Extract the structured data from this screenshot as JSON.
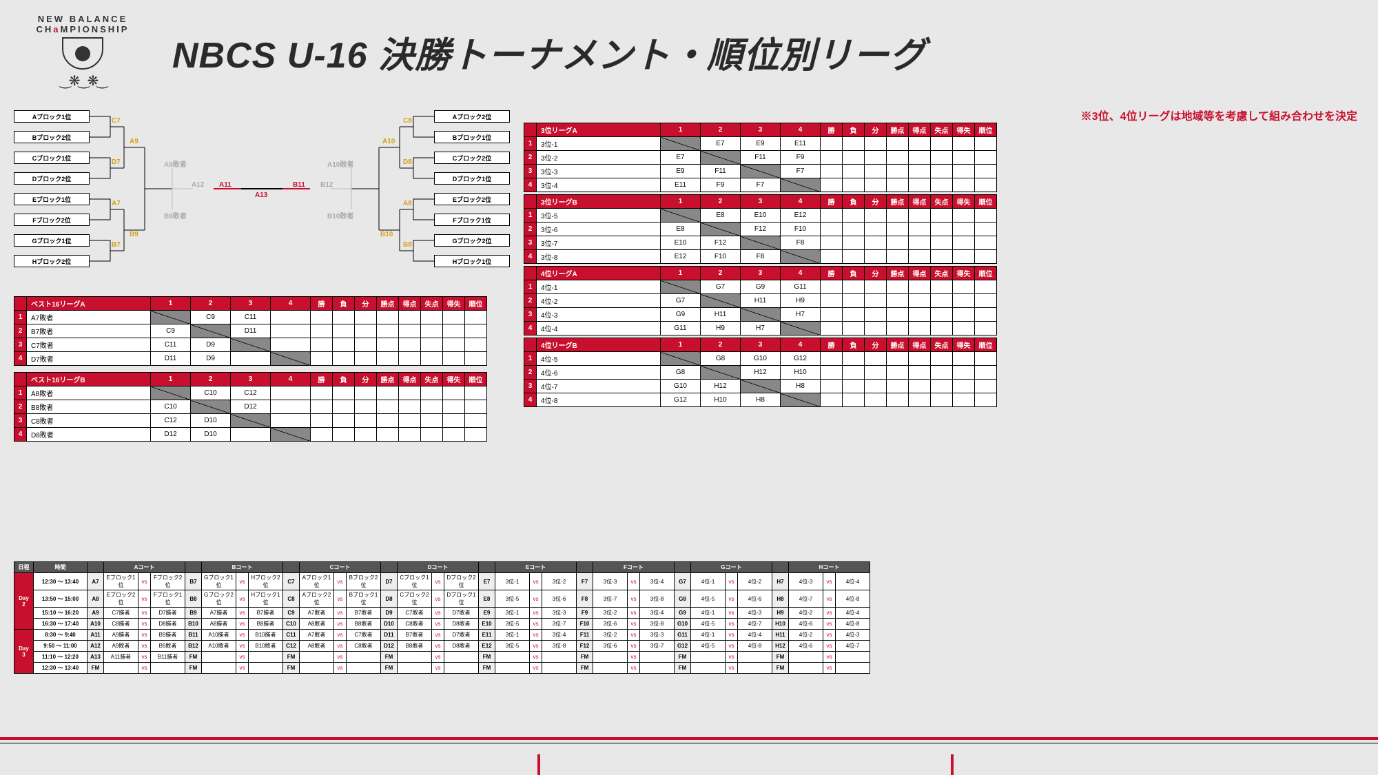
{
  "title": "NBCS U-16 決勝トーナメント・順位別リーグ",
  "logo": {
    "line1": "NEW BALANCE",
    "line2_pre": "CH",
    "line2_a": "a",
    "line2_post": "MPIONSHIP"
  },
  "note": "※3位、4位リーグは地域等を考慮して組み合わせを決定",
  "colors": {
    "accent": "#c8102e",
    "yellow": "#d4a017",
    "gray": "#aaaaaa"
  },
  "bracket": {
    "left_teams": [
      "Aブロック1位",
      "Bブロック2位",
      "Cブロック1位",
      "Dブロック2位",
      "Eブロック1位",
      "Fブロック2位",
      "Gブロック1位",
      "Hブロック2位"
    ],
    "right_teams": [
      "Aブロック2位",
      "Bブロック1位",
      "Cブロック2位",
      "Dブロック1位",
      "Eブロック2位",
      "Fブロック1位",
      "Gブロック2位",
      "Hブロック1位"
    ],
    "labels_yellow_left": [
      "C7",
      "D7",
      "A7",
      "B7",
      "A9",
      "B9"
    ],
    "labels_yellow_right": [
      "C8",
      "D8",
      "A8",
      "B8",
      "A10",
      "B10"
    ],
    "labels_red": [
      "A11",
      "A13",
      "B11"
    ],
    "labels_gray": [
      "A9敗者",
      "B9敗者",
      "A12",
      "A10敗者",
      "B10敗者",
      "B12"
    ]
  },
  "best16A": {
    "title": "ベスト16リーグA",
    "cols": [
      "1",
      "2",
      "3",
      "4",
      "勝",
      "負",
      "分",
      "勝点",
      "得点",
      "失点",
      "得失",
      "順位"
    ],
    "rows": [
      {
        "n": "1",
        "team": "A7敗者",
        "cells": [
          "X",
          "",
          "C9",
          "C11",
          "",
          "",
          "",
          "",
          "",
          "",
          "",
          ""
        ]
      },
      {
        "n": "2",
        "team": "B7敗者",
        "cells": [
          "",
          "X",
          "C9",
          "",
          "D11",
          "",
          "",
          "",
          "",
          "",
          "",
          ""
        ]
      },
      {
        "n": "3",
        "team": "C7敗者",
        "cells": [
          "",
          "C11",
          "",
          "X",
          "D9",
          "",
          "",
          "",
          "",
          "",
          "",
          ""
        ]
      },
      {
        "n": "4",
        "team": "D7敗者",
        "cells": [
          "",
          "",
          "D11",
          "D9",
          "X",
          "",
          "",
          "",
          "",
          "",
          "",
          ""
        ]
      }
    ]
  },
  "best16B": {
    "title": "ベスト16リーグB",
    "cols": [
      "1",
      "2",
      "3",
      "4",
      "勝",
      "負",
      "分",
      "勝点",
      "得点",
      "失点",
      "得失",
      "順位"
    ],
    "rows": [
      {
        "n": "1",
        "team": "A8敗者",
        "cells": [
          "X",
          "",
          "C10",
          "C12",
          "",
          "",
          "",
          "",
          "",
          "",
          "",
          ""
        ]
      },
      {
        "n": "2",
        "team": "B8敗者",
        "cells": [
          "",
          "X",
          "C10",
          "",
          "D12",
          "",
          "",
          "",
          "",
          "",
          "",
          ""
        ]
      },
      {
        "n": "3",
        "team": "C8敗者",
        "cells": [
          "",
          "C12",
          "",
          "X",
          "D10",
          "",
          "",
          "",
          "",
          "",
          "",
          ""
        ]
      },
      {
        "n": "4",
        "team": "D8敗者",
        "cells": [
          "",
          "",
          "D12",
          "D10",
          "X",
          "",
          "",
          "",
          "",
          "",
          "",
          ""
        ]
      }
    ]
  },
  "league3A": {
    "title": "3位リーグA",
    "cols": [
      "1",
      "2",
      "3",
      "4",
      "勝",
      "負",
      "分",
      "勝点",
      "得点",
      "失点",
      "得失",
      "順位"
    ],
    "rows": [
      {
        "n": "1",
        "team": "3位-1",
        "cells": [
          "X",
          "",
          "E7",
          "E9",
          "E11",
          "",
          "",
          "",
          "",
          "",
          "",
          ""
        ]
      },
      {
        "n": "2",
        "team": "3位-2",
        "cells": [
          "",
          "X",
          "E7",
          "F11",
          "F9",
          "",
          "",
          "",
          "",
          "",
          "",
          ""
        ]
      },
      {
        "n": "3",
        "team": "3位-3",
        "cells": [
          "",
          "E9",
          "F11",
          "X",
          "F7",
          "",
          "",
          "",
          "",
          "",
          "",
          ""
        ]
      },
      {
        "n": "4",
        "team": "3位-4",
        "cells": [
          "",
          "E11",
          "F9",
          "F7",
          "X",
          "",
          "",
          "",
          "",
          "",
          "",
          ""
        ]
      }
    ]
  },
  "league3B": {
    "title": "3位リーグB",
    "cols": [
      "1",
      "2",
      "3",
      "4",
      "勝",
      "負",
      "分",
      "勝点",
      "得点",
      "失点",
      "得失",
      "順位"
    ],
    "rows": [
      {
        "n": "1",
        "team": "3位-5",
        "cells": [
          "X",
          "",
          "E8",
          "E10",
          "E12",
          "",
          "",
          "",
          "",
          "",
          "",
          ""
        ]
      },
      {
        "n": "2",
        "team": "3位-6",
        "cells": [
          "",
          "X",
          "E8",
          "F12",
          "F10",
          "",
          "",
          "",
          "",
          "",
          "",
          ""
        ]
      },
      {
        "n": "3",
        "team": "3位-7",
        "cells": [
          "",
          "E10",
          "F12",
          "X",
          "F8",
          "",
          "",
          "",
          "",
          "",
          "",
          ""
        ]
      },
      {
        "n": "4",
        "team": "3位-8",
        "cells": [
          "",
          "E12",
          "F10",
          "F8",
          "X",
          "",
          "",
          "",
          "",
          "",
          "",
          ""
        ]
      }
    ]
  },
  "league4A": {
    "title": "4位リーグA",
    "cols": [
      "1",
      "2",
      "3",
      "4",
      "勝",
      "負",
      "分",
      "勝点",
      "得点",
      "失点",
      "得失",
      "順位"
    ],
    "rows": [
      {
        "n": "1",
        "team": "4位-1",
        "cells": [
          "X",
          "",
          "G7",
          "G9",
          "G11",
          "",
          "",
          "",
          "",
          "",
          "",
          ""
        ]
      },
      {
        "n": "2",
        "team": "4位-2",
        "cells": [
          "",
          "X",
          "G7",
          "H11",
          "H9",
          "",
          "",
          "",
          "",
          "",
          "",
          ""
        ]
      },
      {
        "n": "3",
        "team": "4位-3",
        "cells": [
          "",
          "G9",
          "H11",
          "X",
          "H7",
          "",
          "",
          "",
          "",
          "",
          "",
          ""
        ]
      },
      {
        "n": "4",
        "team": "4位-4",
        "cells": [
          "",
          "G11",
          "H9",
          "H7",
          "X",
          "",
          "",
          "",
          "",
          "",
          "",
          ""
        ]
      }
    ]
  },
  "league4B": {
    "title": "4位リーグB",
    "cols": [
      "1",
      "2",
      "3",
      "4",
      "勝",
      "負",
      "分",
      "勝点",
      "得点",
      "失点",
      "得失",
      "順位"
    ],
    "rows": [
      {
        "n": "1",
        "team": "4位-5",
        "cells": [
          "X",
          "",
          "G8",
          "G10",
          "G12",
          "",
          "",
          "",
          "",
          "",
          "",
          ""
        ]
      },
      {
        "n": "2",
        "team": "4位-6",
        "cells": [
          "",
          "X",
          "G8",
          "H12",
          "H10",
          "",
          "",
          "",
          "",
          "",
          "",
          ""
        ]
      },
      {
        "n": "3",
        "team": "4位-7",
        "cells": [
          "",
          "G10",
          "H12",
          "X",
          "H8",
          "",
          "",
          "",
          "",
          "",
          "",
          ""
        ]
      },
      {
        "n": "4",
        "team": "4位-8",
        "cells": [
          "",
          "G12",
          "H10",
          "H8",
          "X",
          "",
          "",
          "",
          "",
          "",
          "",
          ""
        ]
      }
    ]
  },
  "schedule": {
    "header_top": [
      "日程",
      "時間",
      "Aコート",
      "Bコート",
      "Cコート",
      "Dコート",
      "Eコート",
      "Fコート",
      "Gコート",
      "Hコート"
    ],
    "days": [
      {
        "label": "Day 2",
        "rows": [
          {
            "time": "12:30 ～ 13:40",
            "m": [
              [
                "A7",
                "Eブロック1位",
                "Fブロック2位"
              ],
              [
                "B7",
                "Gブロック1位",
                "Hブロック2位"
              ],
              [
                "C7",
                "Aブロック1位",
                "Bブロック2位"
              ],
              [
                "D7",
                "Cブロック1位",
                "Dブロック2位"
              ],
              [
                "E7",
                "3位-1",
                "3位-2"
              ],
              [
                "F7",
                "3位-3",
                "3位-4"
              ],
              [
                "G7",
                "4位-1",
                "4位-2"
              ],
              [
                "H7",
                "4位-3",
                "4位-4"
              ]
            ]
          },
          {
            "time": "13:50 ～ 15:00",
            "m": [
              [
                "A8",
                "Eブロック2位",
                "Fブロック1位"
              ],
              [
                "B8",
                "Gブロック2位",
                "Hブロック1位"
              ],
              [
                "C8",
                "Aブロック2位",
                "Bブロック1位"
              ],
              [
                "D8",
                "Cブロック2位",
                "Dブロック1位"
              ],
              [
                "E8",
                "3位-5",
                "3位-6"
              ],
              [
                "F8",
                "3位-7",
                "3位-8"
              ],
              [
                "G8",
                "4位-5",
                "4位-6"
              ],
              [
                "H8",
                "4位-7",
                "4位-8"
              ]
            ]
          },
          {
            "time": "15:10 ～ 16:20",
            "m": [
              [
                "A9",
                "C7勝者",
                "D7勝者"
              ],
              [
                "B9",
                "A7勝者",
                "B7勝者"
              ],
              [
                "C9",
                "A7敗者",
                "B7敗者"
              ],
              [
                "D9",
                "C7敗者",
                "D7敗者"
              ],
              [
                "E9",
                "3位-1",
                "3位-3"
              ],
              [
                "F9",
                "3位-2",
                "3位-4"
              ],
              [
                "G9",
                "4位-1",
                "4位-3"
              ],
              [
                "H9",
                "4位-2",
                "4位-4"
              ]
            ]
          },
          {
            "time": "16:30 ～ 17:40",
            "m": [
              [
                "A10",
                "C8勝者",
                "D8勝者"
              ],
              [
                "B10",
                "A8勝者",
                "B8勝者"
              ],
              [
                "C10",
                "A8敗者",
                "B8敗者"
              ],
              [
                "D10",
                "C8敗者",
                "D8敗者"
              ],
              [
                "E10",
                "3位-5",
                "3位-7"
              ],
              [
                "F10",
                "3位-6",
                "3位-8"
              ],
              [
                "G10",
                "4位-5",
                "4位-7"
              ],
              [
                "H10",
                "4位-6",
                "4位-8"
              ]
            ]
          }
        ]
      },
      {
        "label": "Day 3",
        "rows": [
          {
            "time": "8:30 ～ 9:40",
            "m": [
              [
                "A11",
                "A9勝者",
                "B9勝者"
              ],
              [
                "B11",
                "A10勝者",
                "B10勝者"
              ],
              [
                "C11",
                "A7敗者",
                "C7敗者"
              ],
              [
                "D11",
                "B7敗者",
                "D7敗者"
              ],
              [
                "E11",
                "3位-1",
                "3位-4"
              ],
              [
                "F11",
                "3位-2",
                "3位-3"
              ],
              [
                "G11",
                "4位-1",
                "4位-4"
              ],
              [
                "H11",
                "4位-2",
                "4位-3"
              ]
            ]
          },
          {
            "time": "9:50 ～ 11:00",
            "m": [
              [
                "A12",
                "A9敗者",
                "B9敗者"
              ],
              [
                "B12",
                "A10敗者",
                "B10敗者"
              ],
              [
                "C12",
                "A8敗者",
                "C8敗者"
              ],
              [
                "D12",
                "B8敗者",
                "D8敗者"
              ],
              [
                "E12",
                "3位-5",
                "3位-8"
              ],
              [
                "F12",
                "3位-6",
                "3位-7"
              ],
              [
                "G12",
                "4位-5",
                "4位-8"
              ],
              [
                "H12",
                "4位-6",
                "4位-7"
              ]
            ]
          },
          {
            "time": "11:10 ～ 12:20",
            "m": [
              [
                "A13",
                "A11勝者",
                "B11勝者"
              ],
              [
                "FM",
                "",
                ""
              ],
              [
                "FM",
                "",
                ""
              ],
              [
                "FM",
                "",
                ""
              ],
              [
                "FM",
                "",
                ""
              ],
              [
                "FM",
                "",
                ""
              ],
              [
                "FM",
                "",
                ""
              ],
              [
                "FM",
                "",
                ""
              ]
            ]
          },
          {
            "time": "12:30 ～ 13:40",
            "m": [
              [
                "FM",
                "",
                ""
              ],
              [
                "FM",
                "",
                ""
              ],
              [
                "FM",
                "",
                ""
              ],
              [
                "FM",
                "",
                ""
              ],
              [
                "FM",
                "",
                ""
              ],
              [
                "FM",
                "",
                ""
              ],
              [
                "FM",
                "",
                ""
              ],
              [
                "FM",
                "",
                ""
              ]
            ]
          }
        ]
      }
    ]
  }
}
